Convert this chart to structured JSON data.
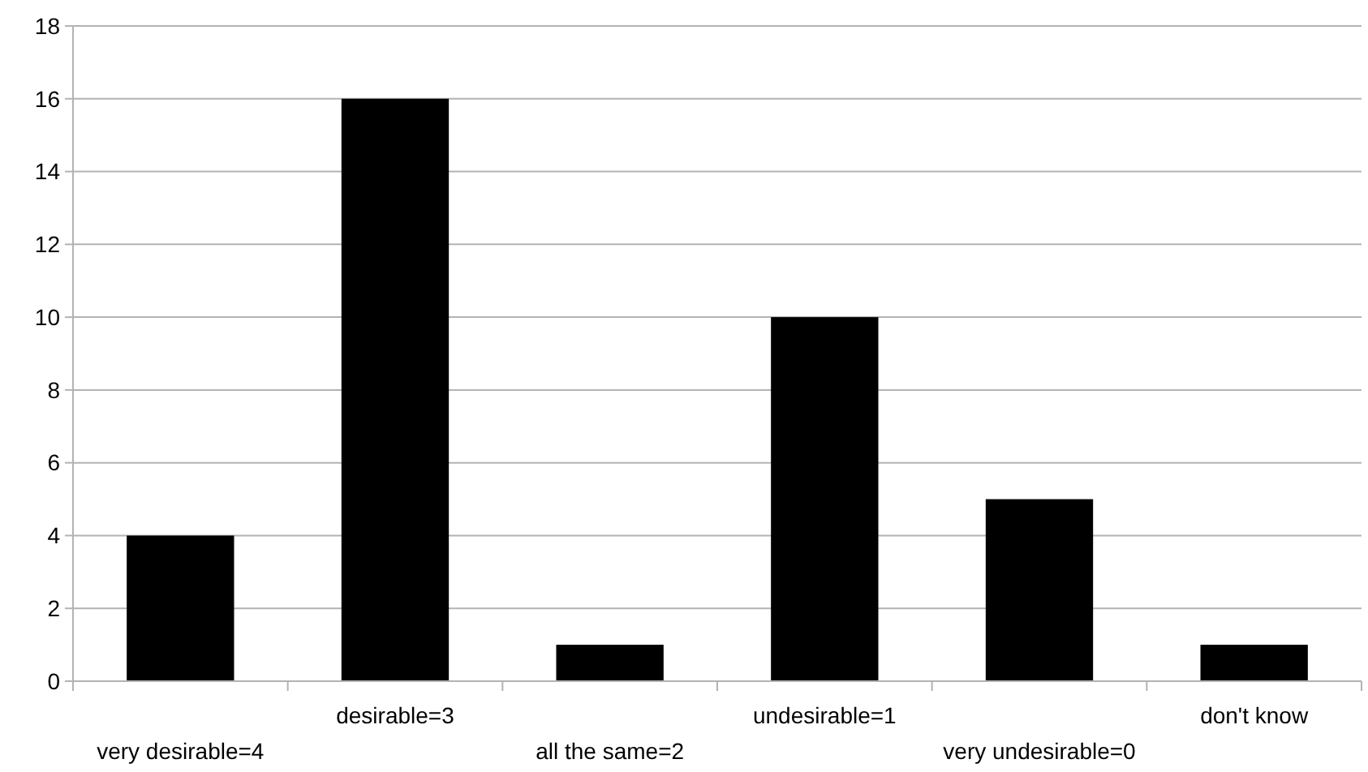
{
  "chart_data": {
    "type": "bar",
    "categories": [
      "very desirable=4",
      "desirable=3",
      "all the same=2",
      "undesirable=1",
      "very undesirable=0",
      "don't know"
    ],
    "values": [
      4,
      16,
      1,
      10,
      5,
      1
    ],
    "color": "#000000",
    "ylim": [
      0,
      18
    ],
    "yticks": [
      0,
      2,
      4,
      6,
      8,
      10,
      12,
      14,
      16,
      18
    ],
    "grid": "y"
  }
}
